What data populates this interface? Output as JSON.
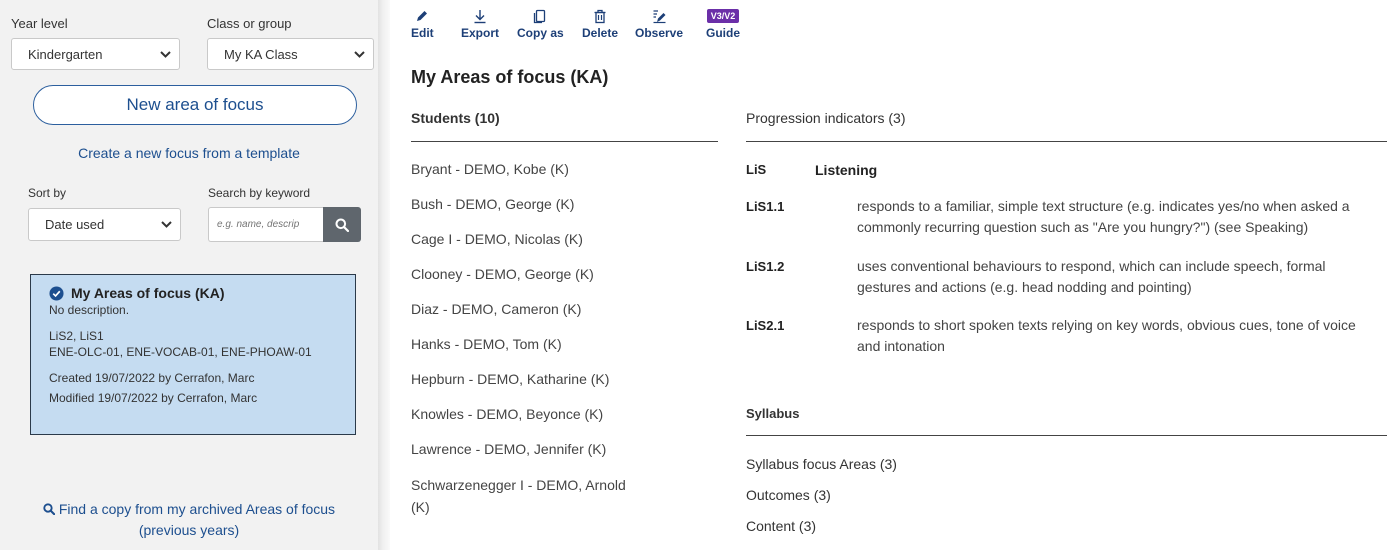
{
  "sidebar": {
    "year_level_label": "Year level",
    "year_level_value": "Kindergarten",
    "class_label": "Class or group",
    "class_value": "My KA Class",
    "new_focus_label": "New area of focus",
    "template_link": "Create a new focus from a template",
    "sort_label": "Sort by",
    "sort_value": "Date used",
    "search_label": "Search by keyword",
    "search_placeholder": "e.g. name, descrip",
    "card": {
      "title": "My Areas of focus (KA)",
      "description": "No description.",
      "codes_line1": "LiS2, LiS1",
      "codes_line2": "ENE-OLC-01, ENE-VOCAB-01, ENE-PHOAW-01",
      "created": "Created 19/07/2022 by Cerrafon, Marc",
      "modified": "Modified 19/07/2022 by Cerrafon, Marc"
    },
    "archived_line1": "Find a copy from my archived Areas of focus",
    "archived_line2": "(previous years)"
  },
  "toolbar": {
    "edit": "Edit",
    "export": "Export",
    "copy_as": "Copy as",
    "delete": "Delete",
    "observe": "Observe",
    "guide_badge": "V3/V2",
    "guide": "Guide"
  },
  "main": {
    "title": "My Areas of focus (KA)",
    "students_header": "Students (10)",
    "students": [
      "Bryant - DEMO, Kobe (K)",
      "Bush - DEMO, George (K)",
      "Cage I - DEMO, Nicolas (K)",
      "Clooney - DEMO, George (K)",
      "Diaz - DEMO, Cameron (K)",
      "Hanks - DEMO, Tom (K)",
      "Hepburn - DEMO, Katharine (K)",
      "Knowles - DEMO, Beyonce (K)",
      "Lawrence - DEMO, Jennifer (K)",
      "Schwarzenegger I - DEMO, Arnold",
      "(K)"
    ],
    "progression_header": "Progression indicators (3)",
    "pi_group_code": "LiS",
    "pi_group_name": "Listening",
    "indicators": [
      {
        "code": "LiS1.1",
        "line1": "responds to a familiar, simple text structure (e.g. indicates yes/no when asked a",
        "line2": "commonly recurring question such as \"Are you hungry?\") (see Speaking)"
      },
      {
        "code": "LiS1.2",
        "line1": "uses conventional behaviours to respond, which can include speech, formal",
        "line2": "gestures and actions (e.g. head nodding and pointing)"
      },
      {
        "code": "LiS2.1",
        "line1": "responds to short spoken texts relying on key words, obvious cues, tone of voice",
        "line2": "and intonation"
      }
    ],
    "syllabus_header": "Syllabus",
    "syllabus_items": [
      "Syllabus focus Areas (3)",
      "Outcomes (3)",
      "Content (3)"
    ]
  },
  "colors": {
    "accent": "#1d4f8f",
    "card_bg": "#c5dcf1",
    "badge": "#6b2fa8",
    "search_button": "#5f666d"
  }
}
